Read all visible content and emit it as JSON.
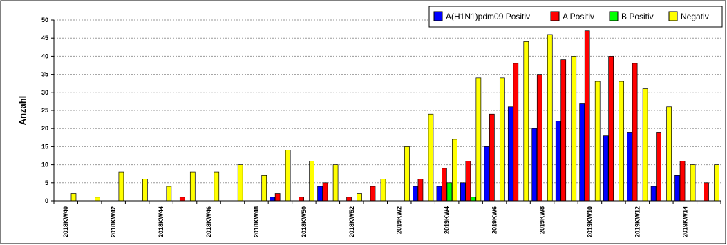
{
  "chart_data": {
    "type": "bar",
    "title": "",
    "xlabel": "",
    "ylabel": "Anzahl",
    "ylim": [
      0,
      50
    ],
    "yticks": [
      0,
      5,
      10,
      15,
      20,
      25,
      30,
      35,
      40,
      45,
      50
    ],
    "grid": "horizontal dotted",
    "legend_position": "top-right",
    "categories": [
      "2018KW40",
      "2018KW41",
      "2018KW42",
      "2018KW43",
      "2018KW44",
      "2018KW45",
      "2018KW46",
      "2018KW47",
      "2018KW48",
      "2018KW49",
      "2018KW50",
      "2018KW51",
      "2018KW52",
      "2019KW1",
      "2019KW2",
      "2019KW3",
      "2019KW4",
      "2019KW5",
      "2019KW6",
      "2019KW7",
      "2019KW8",
      "2019KW9",
      "2019KW10",
      "2019KW11",
      "2019KW12",
      "2019KW13",
      "2019KW14",
      "2019KW15"
    ],
    "tick_labels": [
      "2018KW40",
      "2018KW42",
      "2018KW44",
      "2018KW46",
      "2018KW48",
      "2018KW50",
      "2018KW52",
      "2019KW2",
      "2019KW4",
      "2019KW6",
      "2019KW8",
      "2019KW10",
      "2019KW12",
      "2019KW14"
    ],
    "series": [
      {
        "name": "A(H1N1)pdm09 Positiv",
        "color": "#0000ff",
        "values": [
          0,
          0,
          0,
          0,
          0,
          0,
          0,
          0,
          0,
          1,
          0,
          4,
          0,
          0,
          0,
          4,
          4,
          5,
          15,
          26,
          20,
          22,
          27,
          18,
          19,
          4,
          7,
          0
        ]
      },
      {
        "name": "A Positiv",
        "color": "#ff0000",
        "values": [
          0,
          0,
          0,
          0,
          0,
          1,
          0,
          0,
          0,
          2,
          1,
          5,
          1,
          4,
          0,
          6,
          9,
          11,
          24,
          38,
          35,
          39,
          47,
          40,
          38,
          19,
          11,
          5
        ]
      },
      {
        "name": "B Positiv",
        "color": "#00ff00",
        "values": [
          0,
          0,
          0,
          0,
          0,
          0,
          0,
          0,
          0,
          0,
          0,
          0,
          0,
          0,
          0,
          0,
          5,
          1,
          0,
          0,
          0,
          0,
          0,
          0,
          0,
          0,
          0,
          0
        ]
      },
      {
        "name": "Negativ",
        "color": "#ffff00",
        "values": [
          2,
          1,
          8,
          6,
          4,
          8,
          8,
          10,
          7,
          14,
          11,
          10,
          2,
          6,
          15,
          24,
          17,
          34,
          34,
          44,
          46,
          40,
          33,
          33,
          31,
          26,
          10,
          10
        ]
      }
    ]
  }
}
